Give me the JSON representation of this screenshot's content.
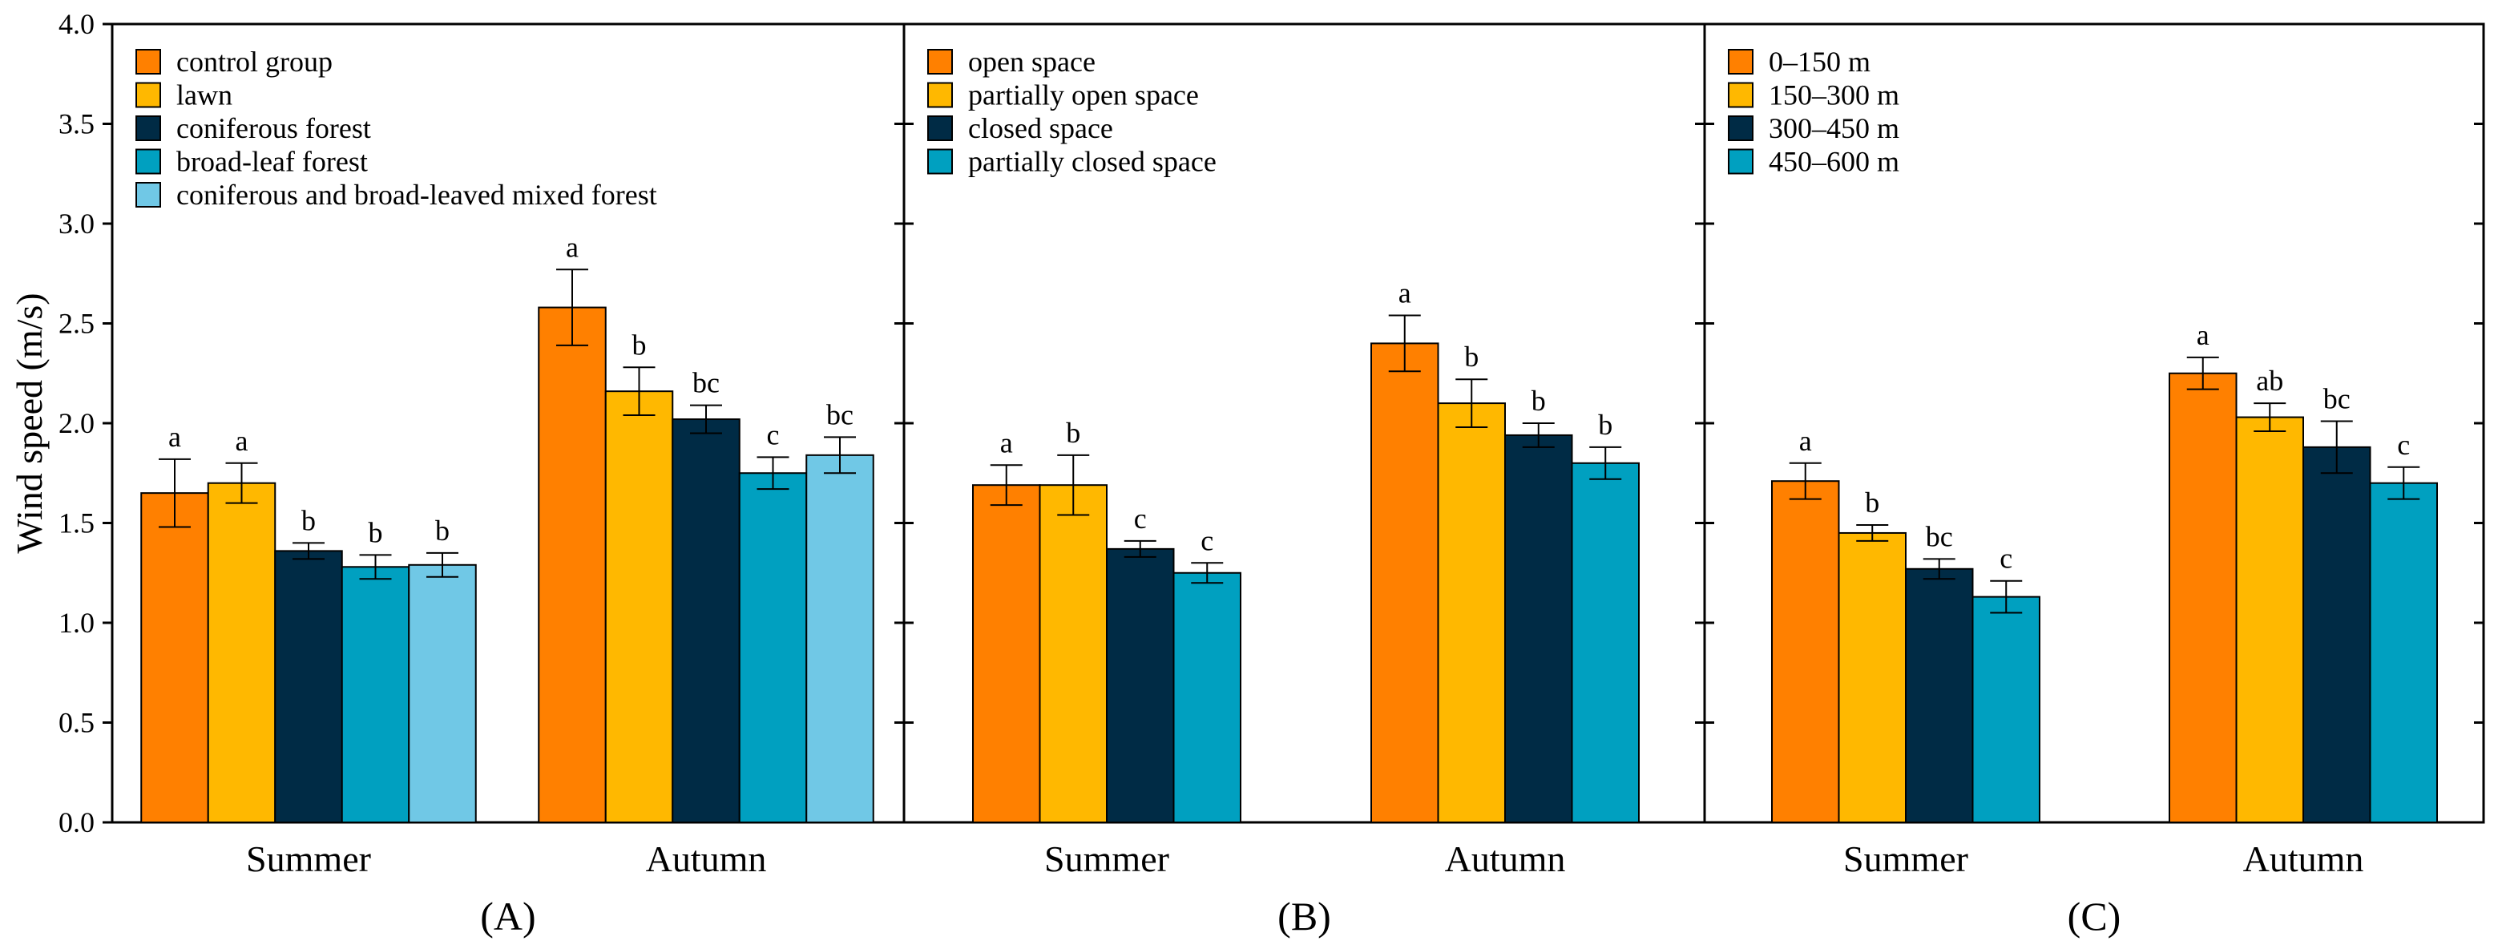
{
  "colors": {
    "orange": "#ff8000",
    "yellow": "#ffb800",
    "navy": "#002b45",
    "teal": "#00a0c0",
    "lightblue": "#70c8e6"
  },
  "y_axis": {
    "label": "Wind speed (m/s)",
    "ylim": [
      0,
      4
    ],
    "ticks": [
      "0.0",
      "0.5",
      "1.0",
      "1.5",
      "2.0",
      "2.5",
      "3.0",
      "3.5",
      "4.0"
    ]
  },
  "chart_data": [
    {
      "type": "bar",
      "panel_label": "(A)",
      "categories": [
        "Summer",
        "Autumn"
      ],
      "ylabel": "Wind speed (m/s)",
      "ylim": [
        0,
        4
      ],
      "legend_position": "top-left",
      "series": [
        {
          "name": "control group",
          "color": "#ff8000",
          "values": [
            1.65,
            2.58
          ],
          "errors": [
            0.17,
            0.19
          ],
          "labels": [
            "a",
            "a"
          ]
        },
        {
          "name": "lawn",
          "color": "#ffb800",
          "values": [
            1.7,
            2.16
          ],
          "errors": [
            0.1,
            0.12
          ],
          "labels": [
            "a",
            "b"
          ]
        },
        {
          "name": "coniferous forest",
          "color": "#002b45",
          "values": [
            1.36,
            2.02
          ],
          "errors": [
            0.04,
            0.07
          ],
          "labels": [
            "b",
            "bc"
          ]
        },
        {
          "name": "broad-leaf forest",
          "color": "#00a0c0",
          "values": [
            1.28,
            1.75
          ],
          "errors": [
            0.06,
            0.08
          ],
          "labels": [
            "b",
            "c"
          ]
        },
        {
          "name": "coniferous and broad-leaved mixed forest",
          "color": "#70c8e6",
          "values": [
            1.29,
            1.84
          ],
          "errors": [
            0.06,
            0.09
          ],
          "labels": [
            "b",
            "bc"
          ]
        }
      ]
    },
    {
      "type": "bar",
      "panel_label": "(B)",
      "categories": [
        "Summer",
        "Autumn"
      ],
      "ylim": [
        0,
        4
      ],
      "legend_position": "top-left",
      "series": [
        {
          "name": "open space",
          "color": "#ff8000",
          "values": [
            1.69,
            2.4
          ],
          "errors": [
            0.1,
            0.14
          ],
          "labels": [
            "a",
            "a"
          ]
        },
        {
          "name": "partially open space",
          "color": "#ffb800",
          "values": [
            1.69,
            2.1
          ],
          "errors": [
            0.15,
            0.12
          ],
          "labels": [
            "b",
            "b"
          ]
        },
        {
          "name": "closed space",
          "color": "#002b45",
          "values": [
            1.37,
            1.94
          ],
          "errors": [
            0.04,
            0.06
          ],
          "labels": [
            "c",
            "b"
          ]
        },
        {
          "name": "partially closed space",
          "color": "#00a0c0",
          "values": [
            1.25,
            1.8
          ],
          "errors": [
            0.05,
            0.08
          ],
          "labels": [
            "c",
            "b"
          ]
        }
      ]
    },
    {
      "type": "bar",
      "panel_label": "(C)",
      "categories": [
        "Summer",
        "Autumn"
      ],
      "ylim": [
        0,
        4
      ],
      "legend_position": "top-left",
      "series": [
        {
          "name": "0–150 m",
          "color": "#ff8000",
          "values": [
            1.71,
            2.25
          ],
          "errors": [
            0.09,
            0.08
          ],
          "labels": [
            "a",
            "a"
          ]
        },
        {
          "name": "150–300 m",
          "color": "#ffb800",
          "values": [
            1.45,
            2.03
          ],
          "errors": [
            0.04,
            0.07
          ],
          "labels": [
            "b",
            "ab"
          ]
        },
        {
          "name": "300–450 m",
          "color": "#002b45",
          "values": [
            1.27,
            1.88
          ],
          "errors": [
            0.05,
            0.13
          ],
          "labels": [
            "bc",
            "bc"
          ]
        },
        {
          "name": "450–600 m",
          "color": "#00a0c0",
          "values": [
            1.13,
            1.7
          ],
          "errors": [
            0.08,
            0.08
          ],
          "labels": [
            "c",
            "c"
          ]
        }
      ]
    }
  ]
}
